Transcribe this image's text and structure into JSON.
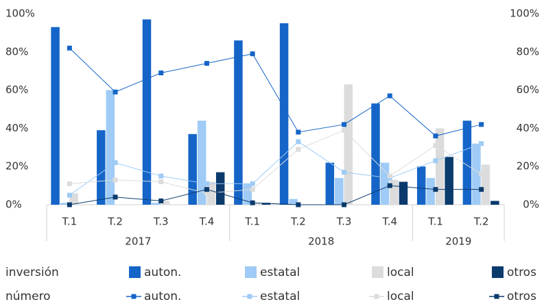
{
  "chart_data": {
    "type": "bar",
    "categories": [
      "T.1",
      "T.2",
      "T.3",
      "T.4",
      "T.1",
      "T.2",
      "T.3",
      "T.4",
      "T.1",
      "T.2"
    ],
    "groups": [
      {
        "label": "2017",
        "span": 4
      },
      {
        "label": "2018",
        "span": 4
      },
      {
        "label": "2019",
        "span": 2
      }
    ],
    "bar_label": "inversión",
    "line_label": "número",
    "series": [
      {
        "name": "auton.",
        "type": "bar",
        "color": "#1565c8",
        "values": [
          93,
          39,
          97,
          37,
          86,
          95,
          22,
          53,
          20,
          44
        ]
      },
      {
        "name": "estatal",
        "type": "bar",
        "color": "#9fcbf6",
        "values": [
          1,
          60,
          1,
          44,
          11,
          3,
          14,
          22,
          14,
          32
        ]
      },
      {
        "name": "local",
        "type": "bar",
        "color": "#dcdcdc",
        "values": [
          6,
          0,
          2,
          12,
          1,
          0,
          63,
          13,
          40,
          21
        ]
      },
      {
        "name": "otros",
        "type": "bar",
        "color": "#0b3a6c",
        "values": [
          0,
          0,
          0,
          17,
          1,
          0,
          0,
          12,
          25,
          2
        ]
      },
      {
        "name": "auton.",
        "type": "line",
        "axis": "y2",
        "color": "#1565c8",
        "values": [
          82,
          59,
          69,
          74,
          79,
          38,
          42,
          57,
          36,
          42
        ]
      },
      {
        "name": "estatal",
        "type": "line",
        "axis": "y2",
        "color": "#9fcbf6",
        "values": [
          5,
          22,
          15,
          11,
          11,
          33,
          17,
          14,
          23,
          32
        ]
      },
      {
        "name": "local",
        "type": "line",
        "axis": "y2",
        "color": "#dcdcdc",
        "values": [
          11,
          13,
          12,
          6,
          8,
          29,
          39,
          15,
          31,
          16
        ]
      },
      {
        "name": "otros",
        "type": "line",
        "axis": "y2",
        "color": "#0b3a6c",
        "values": [
          0,
          4,
          2,
          8,
          1,
          0,
          0,
          10,
          8,
          8
        ]
      }
    ],
    "ylim": [
      0,
      100
    ],
    "yticks": [
      {
        "value": 0,
        "label": "0%"
      },
      {
        "value": 20,
        "label": "20%"
      },
      {
        "value": 40,
        "label": "40%"
      },
      {
        "value": 60,
        "label": "60%"
      },
      {
        "value": 80,
        "label": "80%"
      },
      {
        "value": 100,
        "label": "100%"
      }
    ],
    "y2lim": [
      0,
      100
    ],
    "y2ticks": [
      {
        "value": 0,
        "label": "0%"
      },
      {
        "value": 20,
        "label": "20%"
      },
      {
        "value": 40,
        "label": "40%"
      },
      {
        "value": 60,
        "label": "60%"
      },
      {
        "value": 80,
        "label": "80%"
      },
      {
        "value": 100,
        "label": "100%"
      }
    ],
    "grid": false
  }
}
